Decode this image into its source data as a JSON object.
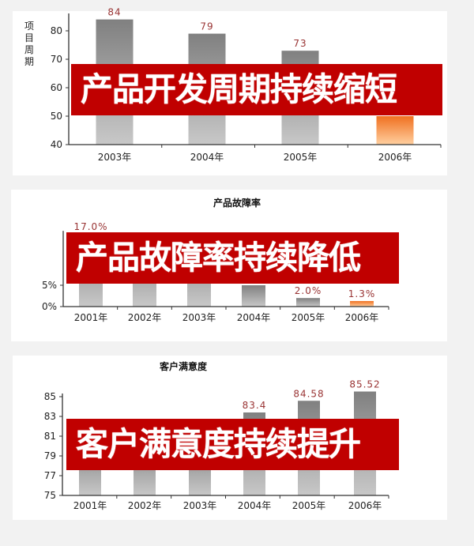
{
  "banners": [
    "产品开发周期持续缩短",
    "产品故障率持续降低",
    "客户满意度持续提升"
  ],
  "colors": {
    "banner": "#c00000",
    "bar_gray_top": "#808080",
    "bar_gray_bottom": "#c8c8c8",
    "bar_highlight_top": "#f07020",
    "bar_highlight_bottom": "#ffd0a0",
    "data_label": "#993333"
  },
  "chart_data": [
    {
      "type": "bar",
      "title": "",
      "ylabel": "项目周期",
      "categories": [
        "2003年",
        "2004年",
        "2005年",
        "2006年"
      ],
      "values": [
        84,
        79,
        73,
        50
      ],
      "data_labels": [
        "84",
        "79",
        "73",
        ""
      ],
      "ylim": [
        40,
        85
      ],
      "yticks": [
        "40",
        "50",
        "60",
        "70",
        "80"
      ],
      "highlight": [
        false,
        false,
        false,
        true
      ],
      "grid": false
    },
    {
      "type": "bar",
      "title": "产品故障率",
      "ylabel": "",
      "categories": [
        "2001年",
        "2002年",
        "2003年",
        "2004年",
        "2005年",
        "2006年"
      ],
      "values": [
        17.0,
        null,
        null,
        5.0,
        2.0,
        1.3
      ],
      "data_labels": [
        "17.0%",
        "",
        "",
        "",
        "2.0%",
        "1.3%"
      ],
      "ylim": [
        0,
        17
      ],
      "yticks": [
        "0%",
        "5%"
      ],
      "highlight": [
        false,
        false,
        false,
        false,
        false,
        true
      ],
      "grid": false
    },
    {
      "type": "bar",
      "title": "客户满意度",
      "ylabel": "",
      "categories": [
        "2001年",
        "2002年",
        "2003年",
        "2004年",
        "2005年",
        "2006年"
      ],
      "values": [
        null,
        null,
        null,
        83.4,
        84.58,
        85.52
      ],
      "data_labels": [
        "",
        "",
        "",
        "83.4",
        "84.58",
        "85.52"
      ],
      "ylim": [
        75,
        85
      ],
      "yticks": [
        "75",
        "77",
        "79",
        "81",
        "83",
        "85"
      ],
      "highlight": [
        false,
        false,
        false,
        false,
        false,
        false
      ],
      "grid": false
    }
  ]
}
